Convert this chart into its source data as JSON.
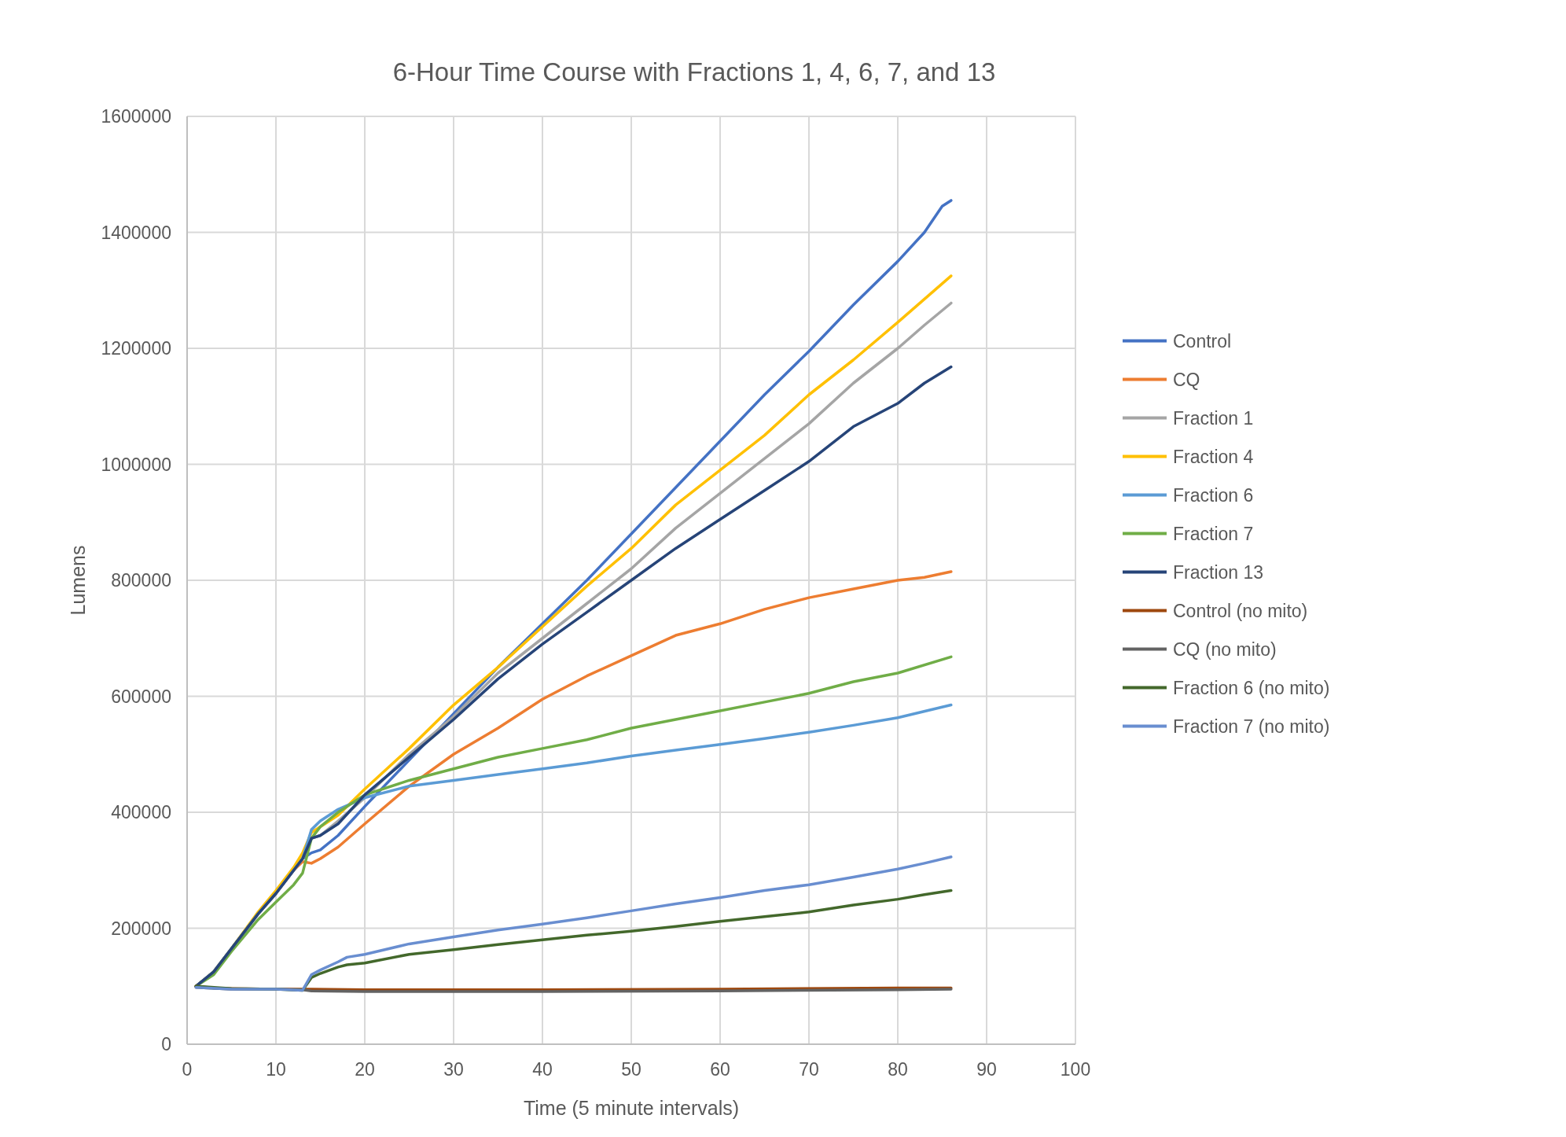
{
  "chart_data": {
    "type": "line",
    "title": "6-Hour Time Course with Fractions 1, 4, 6, 7, and 13",
    "xlabel": "Time (5 minute intervals)",
    "ylabel": "Lumens",
    "xlim": [
      0,
      100
    ],
    "xticks": [
      0,
      10,
      20,
      30,
      40,
      50,
      60,
      70,
      80,
      90,
      100
    ],
    "ylim": [
      0,
      1600000
    ],
    "yticks": [
      0,
      200000,
      400000,
      600000,
      800000,
      1000000,
      1200000,
      1400000,
      1600000
    ],
    "grid": true,
    "legend": "right",
    "marker": "none",
    "line_style": "solid",
    "series": [
      {
        "name": "Control",
        "color": "#4472c4",
        "x": [
          1,
          3,
          5,
          8,
          10,
          12,
          13,
          14,
          15,
          17,
          20,
          25,
          30,
          35,
          40,
          45,
          50,
          55,
          60,
          65,
          70,
          75,
          80,
          83,
          85,
          86
        ],
        "values": [
          100000,
          125000,
          165000,
          225000,
          260000,
          300000,
          320000,
          330000,
          335000,
          360000,
          410000,
          490000,
          570000,
          650000,
          725000,
          800000,
          880000,
          960000,
          1040000,
          1120000,
          1195000,
          1275000,
          1350000,
          1400000,
          1445000,
          1455000
        ]
      },
      {
        "name": "CQ",
        "color": "#ed7d31",
        "x": [
          1,
          3,
          5,
          8,
          10,
          12,
          13,
          14,
          15,
          17,
          20,
          25,
          30,
          35,
          40,
          45,
          50,
          55,
          60,
          65,
          70,
          75,
          80,
          83,
          86
        ],
        "values": [
          100000,
          125000,
          165000,
          225000,
          260000,
          300000,
          315000,
          312000,
          320000,
          340000,
          380000,
          445000,
          500000,
          545000,
          595000,
          635000,
          670000,
          705000,
          725000,
          750000,
          770000,
          785000,
          800000,
          805000,
          815000
        ]
      },
      {
        "name": "Fraction 1",
        "color": "#a5a5a5",
        "x": [
          1,
          3,
          5,
          8,
          10,
          12,
          13,
          14,
          15,
          17,
          20,
          25,
          30,
          35,
          40,
          45,
          50,
          55,
          60,
          65,
          70,
          75,
          80,
          83,
          86
        ],
        "values": [
          100000,
          125000,
          165000,
          225000,
          260000,
          300000,
          320000,
          355000,
          360000,
          385000,
          425000,
          500000,
          565000,
          640000,
          700000,
          760000,
          820000,
          890000,
          950000,
          1010000,
          1070000,
          1140000,
          1200000,
          1240000,
          1278000
        ]
      },
      {
        "name": "Fraction 4",
        "color": "#ffc000",
        "x": [
          1,
          3,
          5,
          8,
          10,
          12,
          13,
          14,
          15,
          17,
          20,
          25,
          30,
          35,
          40,
          45,
          50,
          55,
          60,
          65,
          70,
          75,
          80,
          83,
          86
        ],
        "values": [
          100000,
          125000,
          165000,
          228000,
          265000,
          305000,
          330000,
          365000,
          375000,
          395000,
          440000,
          510000,
          585000,
          650000,
          720000,
          790000,
          855000,
          930000,
          990000,
          1050000,
          1120000,
          1180000,
          1245000,
          1285000,
          1325000
        ]
      },
      {
        "name": "Fraction 6",
        "color": "#5b9bd5",
        "x": [
          1,
          3,
          5,
          8,
          10,
          12,
          13,
          14,
          15,
          17,
          20,
          25,
          30,
          35,
          40,
          45,
          50,
          55,
          60,
          65,
          70,
          75,
          80,
          86
        ],
        "values": [
          100000,
          125000,
          165000,
          225000,
          260000,
          300000,
          320000,
          370000,
          385000,
          405000,
          425000,
          445000,
          455000,
          465000,
          475000,
          485000,
          497000,
          507000,
          517000,
          527000,
          538000,
          550000,
          563000,
          585000
        ]
      },
      {
        "name": "Fraction 7",
        "color": "#70ad47",
        "x": [
          1,
          3,
          5,
          8,
          10,
          12,
          13,
          14,
          15,
          17,
          20,
          25,
          30,
          35,
          40,
          45,
          50,
          55,
          60,
          65,
          70,
          75,
          80,
          86
        ],
        "values": [
          100000,
          120000,
          160000,
          215000,
          245000,
          275000,
          295000,
          355000,
          375000,
          400000,
          430000,
          455000,
          475000,
          495000,
          510000,
          525000,
          545000,
          560000,
          575000,
          590000,
          605000,
          625000,
          640000,
          668000
        ]
      },
      {
        "name": "Fraction 13",
        "color": "#264478",
        "x": [
          1,
          3,
          5,
          8,
          10,
          12,
          13,
          14,
          15,
          17,
          20,
          25,
          30,
          35,
          40,
          45,
          50,
          55,
          60,
          65,
          70,
          75,
          80,
          83,
          86
        ],
        "values": [
          100000,
          125000,
          165000,
          225000,
          260000,
          300000,
          320000,
          355000,
          360000,
          380000,
          430000,
          495000,
          560000,
          630000,
          690000,
          745000,
          800000,
          855000,
          905000,
          955000,
          1005000,
          1065000,
          1105000,
          1140000,
          1168000
        ]
      },
      {
        "name": "Control (no mito)",
        "color": "#9e480e",
        "x": [
          1,
          3,
          5,
          10,
          13,
          14,
          20,
          40,
          60,
          80,
          86
        ],
        "values": [
          100000,
          97000,
          96000,
          95000,
          95000,
          95000,
          94000,
          94000,
          95000,
          97000,
          97000
        ]
      },
      {
        "name": "CQ (no mito)",
        "color": "#636363",
        "x": [
          1,
          5,
          10,
          13,
          14,
          20,
          40,
          60,
          80,
          86
        ],
        "values": [
          98000,
          95000,
          95000,
          94000,
          92000,
          91000,
          91000,
          92000,
          94000,
          95000
        ]
      },
      {
        "name": "Fraction 6 (no mito)",
        "color": "#43682b",
        "x": [
          1,
          5,
          10,
          13,
          14,
          15,
          17,
          18,
          20,
          25,
          30,
          35,
          40,
          45,
          50,
          55,
          60,
          65,
          70,
          75,
          80,
          83,
          86
        ],
        "values": [
          100000,
          96000,
          95000,
          93000,
          115000,
          122000,
          133000,
          137000,
          140000,
          155000,
          163000,
          172000,
          180000,
          188000,
          195000,
          203000,
          212000,
          220000,
          228000,
          240000,
          250000,
          258000,
          265000
        ]
      },
      {
        "name": "Fraction 7 (no mito)",
        "color": "#698ed0",
        "x": [
          1,
          5,
          10,
          13,
          14,
          15,
          17,
          18,
          20,
          25,
          30,
          35,
          40,
          45,
          50,
          55,
          60,
          65,
          70,
          75,
          80,
          83,
          86
        ],
        "values": [
          98000,
          95000,
          95000,
          93000,
          120000,
          128000,
          142000,
          150000,
          155000,
          173000,
          185000,
          197000,
          207000,
          218000,
          230000,
          242000,
          253000,
          265000,
          275000,
          288000,
          302000,
          312000,
          323000
        ]
      }
    ]
  }
}
